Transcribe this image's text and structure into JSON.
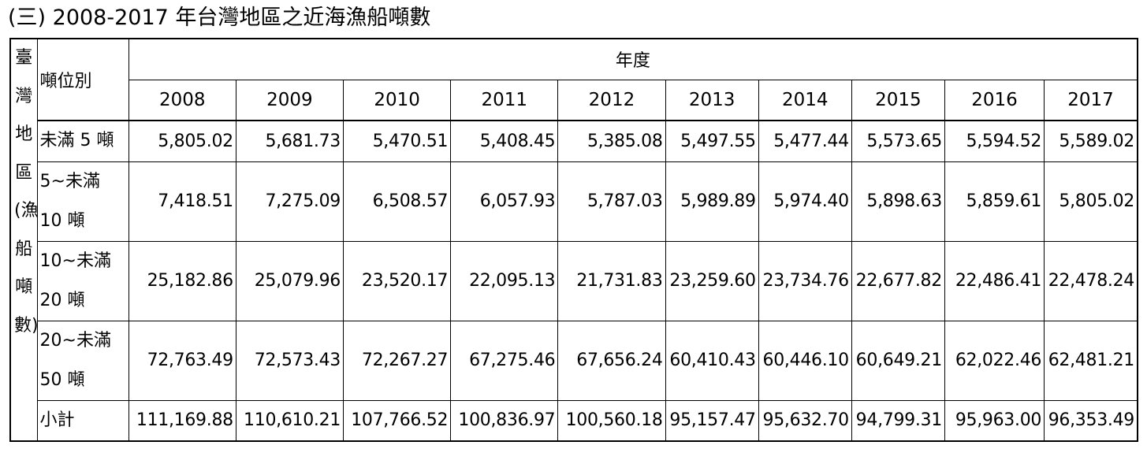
{
  "title": "(三) 2008-2017 年台灣地區之近海漁船噸數",
  "table": {
    "side_label": "臺灣地區(漁船噸數)",
    "row_header": "噸位別",
    "column_group": "年度",
    "columns": [
      "2008",
      "2009",
      "2010",
      "2011",
      "2012",
      "2013",
      "2014",
      "2015",
      "2016",
      "2017"
    ],
    "rows": [
      {
        "label": [
          "未滿 5 噸"
        ],
        "values": [
          "5,805.02",
          "5,681.73",
          "5,470.51",
          "5,408.45",
          "5,385.08",
          "5,497.55",
          "5,477.44",
          "5,573.65",
          "5,594.52",
          "5,589.02"
        ]
      },
      {
        "label": [
          "5~未滿",
          "10 噸"
        ],
        "values": [
          "7,418.51",
          "7,275.09",
          "6,508.57",
          "6,057.93",
          "5,787.03",
          "5,989.89",
          "5,974.40",
          "5,898.63",
          "5,859.61",
          "5,805.02"
        ]
      },
      {
        "label": [
          "10~未滿",
          "20 噸"
        ],
        "values": [
          "25,182.86",
          "25,079.96",
          "23,520.17",
          "22,095.13",
          "21,731.83",
          "23,259.60",
          "23,734.76",
          "22,677.82",
          "22,486.41",
          "22,478.24"
        ]
      },
      {
        "label": [
          "20~未滿",
          "50 噸"
        ],
        "values": [
          "72,763.49",
          "72,573.43",
          "72,267.27",
          "67,275.46",
          "67,656.24",
          "60,410.43",
          "60,446.10",
          "60,649.21",
          "62,022.46",
          "62,481.21"
        ]
      },
      {
        "label": [
          "小計"
        ],
        "values": [
          "111,169.88",
          "110,610.21",
          "107,766.52",
          "100,836.97",
          "100,560.18",
          "95,157.47",
          "95,632.70",
          "94,799.31",
          "95,963.00",
          "96,353.49"
        ]
      }
    ]
  }
}
